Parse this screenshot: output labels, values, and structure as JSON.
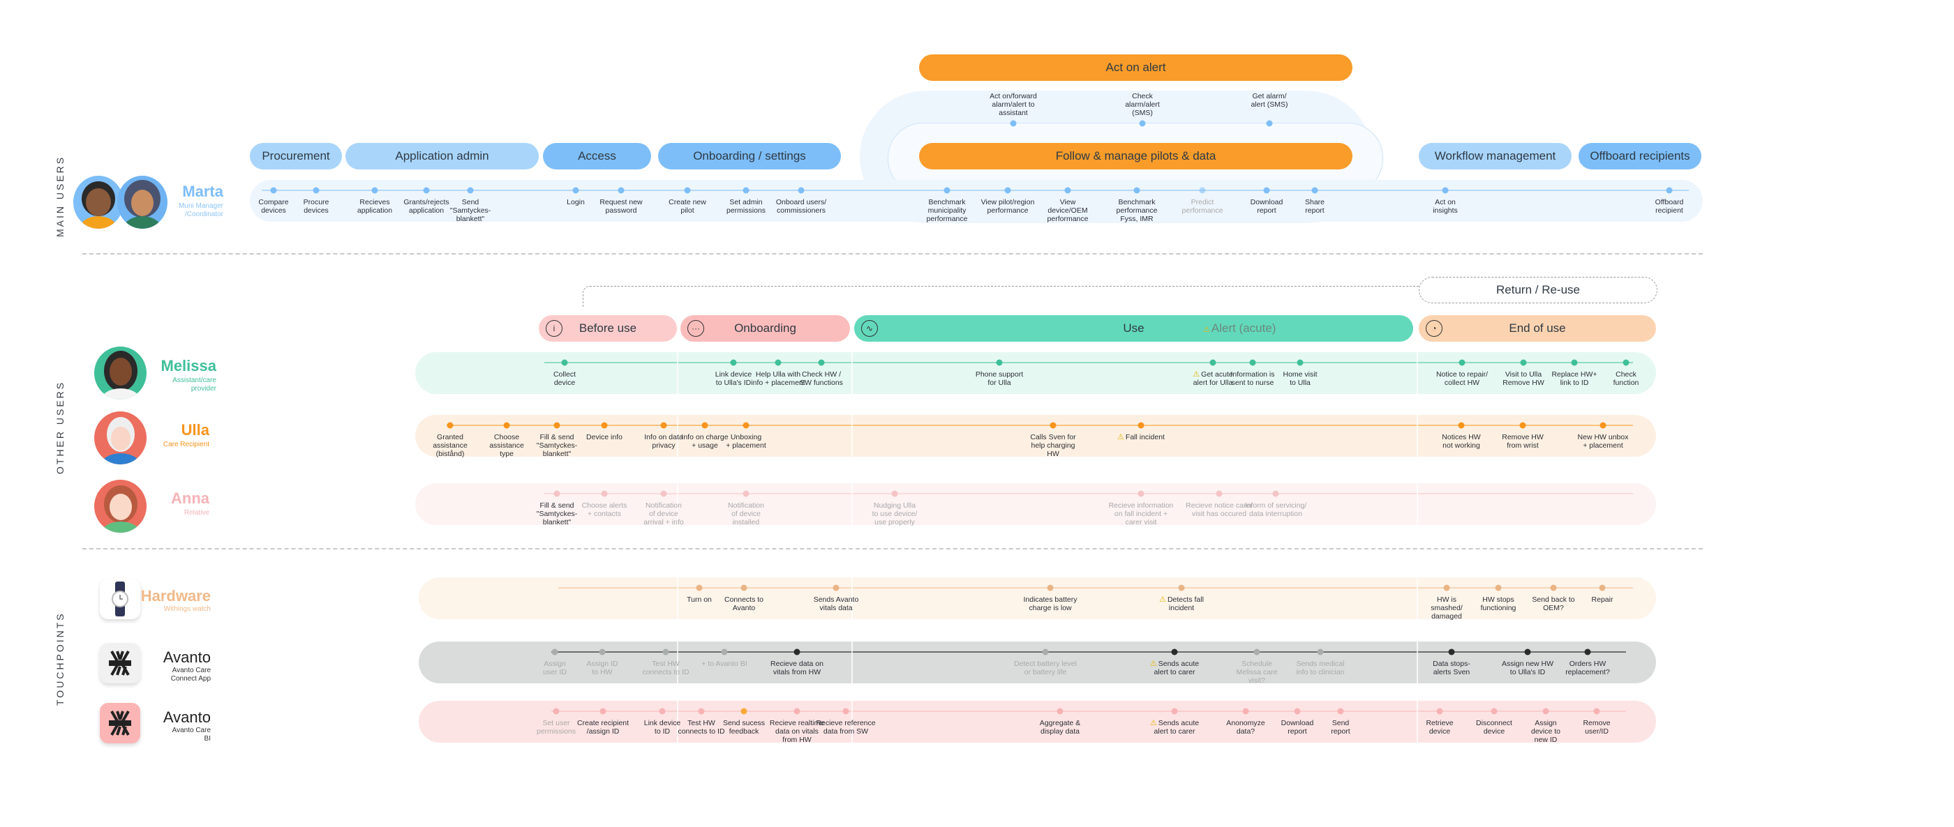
{
  "sections": {
    "main_users": "MAIN USERS",
    "other_users": "OTHER USERS",
    "touchpoints": "TOUCHPOINTS"
  },
  "colors": {
    "blue_light": "#a9d5fb",
    "blue": "#7dbef8",
    "orange": "#f99c2a",
    "before_use": "#fccccc",
    "onboarding": "#fbbcbc",
    "use": "#62d9bb",
    "end_of_use": "#fbd3b0"
  },
  "personas": {
    "marta": {
      "name": "Marta",
      "role": "Muni Manager\n/Coordinator",
      "color": "#7dbef8"
    },
    "melissa": {
      "name": "Melissa",
      "role": "Assistant/care\nprovider",
      "color": "#3fbf98"
    },
    "ulla": {
      "name": "Ulla",
      "role": "Care Recipient",
      "color": "#f7941d"
    },
    "anna": {
      "name": "Anna",
      "role": "Relative",
      "color": "#f6b3b8"
    },
    "hardware": {
      "name": "Hardware",
      "role": "Withings watch",
      "color": "#f0b98a",
      "icon": "watch-icon"
    },
    "app": {
      "name": "Avanto",
      "role": "Avanto Care\nConnect App",
      "color": "#222",
      "icon": "avanto-logo-icon"
    },
    "bi": {
      "name": "Avanto",
      "role": "Avanto Care\nBI",
      "color": "#222",
      "icon": "avanto-logo-icon"
    }
  },
  "marta_phases": [
    "Procurement",
    "Application admin",
    "Access",
    "Onboarding / settings",
    "Workflow management",
    "Offboard recipients"
  ],
  "act_on_alert": "Act on alert",
  "follow_manage": "Follow & manage pilots & data",
  "alert_steps": [
    {
      "label": "Act on/forward\nalarm/alert to\nassistant"
    },
    {
      "label": "Check\nalarm/alert\n(SMS)"
    },
    {
      "label": "Get alarm/\nalert (SMS)"
    }
  ],
  "marta_steps": [
    {
      "label": "Compare\ndevices"
    },
    {
      "label": "Procure\ndevices"
    },
    {
      "label": "Recieves\napplication"
    },
    {
      "label": "Grants/rejects\napplication"
    },
    {
      "label": "Send\n\"Samtyckes-\nblankett\""
    },
    {
      "label": "Login"
    },
    {
      "label": "Request new\npassword"
    },
    {
      "label": "Create new\npilot"
    },
    {
      "label": "Set admin\npermissions"
    },
    {
      "label": "Onboard users/\ncommissioners"
    },
    {
      "label": "Benchmark\nmunicipality\nperformance"
    },
    {
      "label": "View pilot/region\nperformance"
    },
    {
      "label": "View\ndevice/OEM\nperformance"
    },
    {
      "label": "Benchmark\nperformance\nFyss, IMR"
    },
    {
      "label": "Predict\nperformance"
    },
    {
      "label": "Download\nreport"
    },
    {
      "label": "Share\nreport"
    },
    {
      "label": "Act on\ninsights"
    },
    {
      "label": "Offboard\nrecipient"
    }
  ],
  "journey_phases": [
    {
      "label": "Before use",
      "icon": "info-icon"
    },
    {
      "label": "Onboarding",
      "icon": "ellipsis-icon"
    },
    {
      "label": "Use",
      "icon": "pulse-icon",
      "extra": "Alert (acute)"
    },
    {
      "label": "End of use",
      "icon": "clock-icon"
    }
  ],
  "return_reuse": "Return / Re-use",
  "melissa_steps": [
    {
      "label": "Collect\ndevice"
    },
    {
      "label": "Link device\nto Ulla's ID"
    },
    {
      "label": "Help Ulla with\ninfo +  placement"
    },
    {
      "label": "Check HW /\nSW functions"
    },
    {
      "label": "Phone support\nfor Ulla"
    },
    {
      "label": "Get acute\nalert for Ulla",
      "alert": true
    },
    {
      "label": "Information is\nsent to nurse"
    },
    {
      "label": "Home visit\nto Ulla"
    },
    {
      "label": "Notice to repair/\ncollect HW"
    },
    {
      "label": "Visit to Ulla\nRemove HW"
    },
    {
      "label": "Replace HW+\nlink to ID"
    },
    {
      "label": "Check\nfunction"
    }
  ],
  "ulla_steps": [
    {
      "label": "Granted\nassistance\n(bistånd)"
    },
    {
      "label": "Choose\nassistance\ntype"
    },
    {
      "label": "Fill & send\n\"Samtyckes-\nblankett\""
    },
    {
      "label": "Device info"
    },
    {
      "label": "Info on data\nprivacy"
    },
    {
      "label": "Info on charge\n+ usage"
    },
    {
      "label": "Unboxing\n+ placement"
    },
    {
      "label": "Calls Sven for\nhelp charging\nHW"
    },
    {
      "label": "Fall incident",
      "alert": true
    },
    {
      "label": "Notices HW\nnot working"
    },
    {
      "label": "Remove HW\nfrom wrist"
    },
    {
      "label": "New HW unbox\n+ placement"
    }
  ],
  "anna_steps": [
    {
      "label": "Fill & send\n\"Samtyckes-\nblankett\""
    },
    {
      "label": "Choose alerts\n+  contacts"
    },
    {
      "label": "Notification\nof device\narrival + info"
    },
    {
      "label": "Notification\nof device\ninstalled"
    },
    {
      "label": "Nudging Ulla\nto use device/\nuse properly"
    },
    {
      "label": "Recieve information\non fall incident +\ncarer visit"
    },
    {
      "label": "Recieve notice carer\nvisit has occured"
    },
    {
      "label": "Inform of servicing/\ndata interruption"
    }
  ],
  "hardware_steps": [
    {
      "label": "Turn on"
    },
    {
      "label": "Connects to\nAvanto"
    },
    {
      "label": "Sends Avanto\nvitals data"
    },
    {
      "label": "Indicates battery\ncharge is low"
    },
    {
      "label": "Detects fall\nincident",
      "alert": true
    },
    {
      "label": "HW is\nsmashed/\ndamaged"
    },
    {
      "label": "HW stops\nfunctioning"
    },
    {
      "label": "Send back to\nOEM?"
    },
    {
      "label": "Repair"
    }
  ],
  "app_steps": [
    {
      "label": "Assign\nuser ID"
    },
    {
      "label": "Assign ID\nto HW"
    },
    {
      "label": "Test HW\nconnects to ID"
    },
    {
      "label": "+ to Avanto BI"
    },
    {
      "label": "Recieve data on\nvitals from HW"
    },
    {
      "label": "Detect battery level\nor battery life"
    },
    {
      "label": "Sends acute\nalert to carer",
      "alert": true
    },
    {
      "label": "Schedule\nMelissa care\nvisit?"
    },
    {
      "label": "Sends medical\ninfo to clinician"
    },
    {
      "label": "Data stops-\nalerts Sven"
    },
    {
      "label": "Assign new HW\nto Ulla's ID"
    },
    {
      "label": "Orders HW\nreplacement?"
    }
  ],
  "bi_steps": [
    {
      "label": "Set user\npermissions"
    },
    {
      "label": "Create recipient\n/assign ID"
    },
    {
      "label": "Link device\nto ID"
    },
    {
      "label": "Test HW\nconnects to ID"
    },
    {
      "label": "Send sucess\nfeedback"
    },
    {
      "label": "Recieve realtime\ndata on vitals\nfrom HW"
    },
    {
      "label": "Recieve reference\ndata from SW"
    },
    {
      "label": "Aggregate &\ndisplay data"
    },
    {
      "label": "Sends acute\nalert to carer",
      "alert": true
    },
    {
      "label": "Anonomyze\ndata?"
    },
    {
      "label": "Download\nreport"
    },
    {
      "label": "Send\nreport"
    },
    {
      "label": "Retrieve\ndevice"
    },
    {
      "label": "Disconnect\ndevice"
    },
    {
      "label": "Assign\ndevice to\nnew ID"
    },
    {
      "label": "Remove\nuser/ID"
    }
  ]
}
